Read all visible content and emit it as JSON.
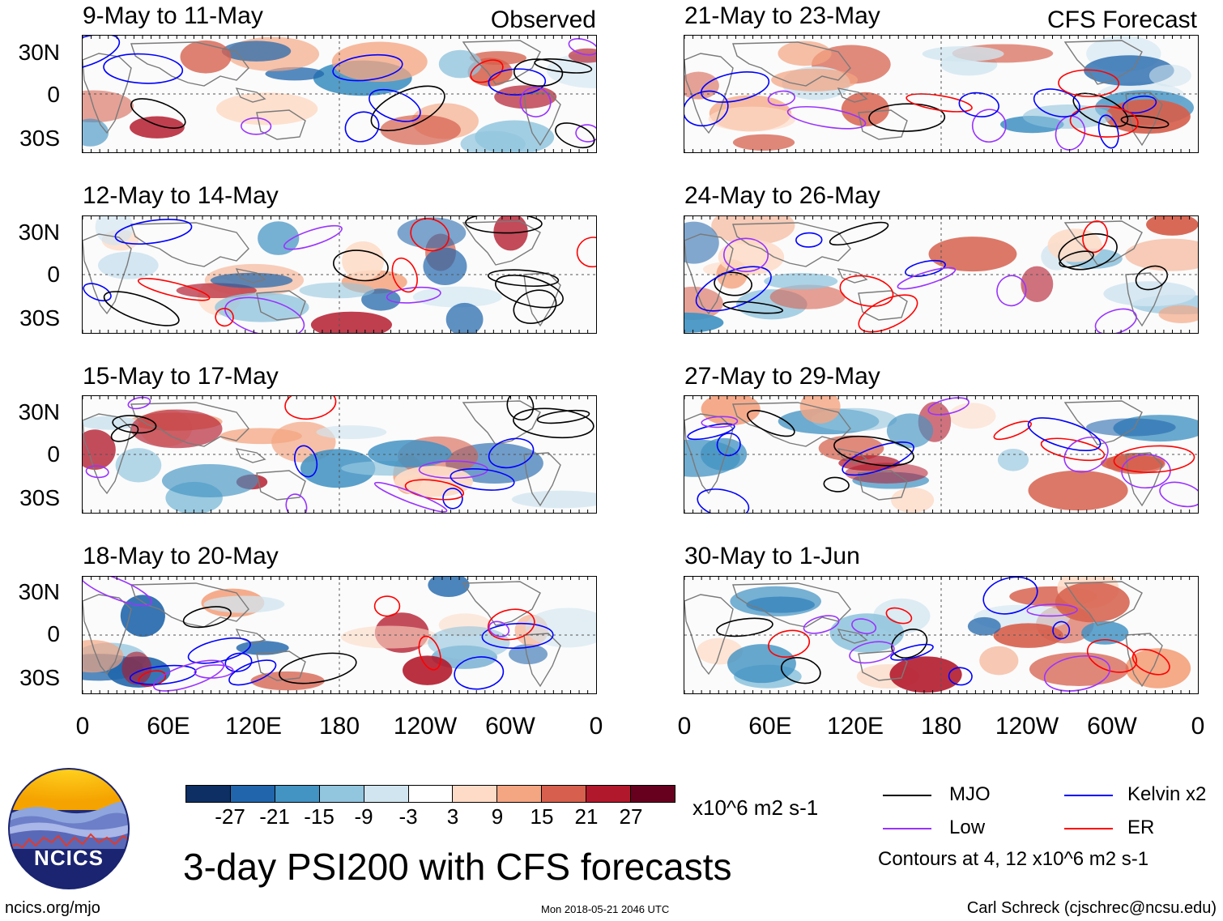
{
  "headers": {
    "left": "Observed",
    "right": "CFS Forecast"
  },
  "panels_left": [
    {
      "title": "9-May to 11-May"
    },
    {
      "title": "12-May to 14-May"
    },
    {
      "title": "15-May to 17-May"
    },
    {
      "title": "18-May to 20-May"
    }
  ],
  "panels_right": [
    {
      "title": "21-May to 23-May"
    },
    {
      "title": "24-May to 26-May"
    },
    {
      "title": "27-May to 29-May"
    },
    {
      "title": "30-May to 1-Jun"
    }
  ],
  "lat_labels": [
    "30N",
    "0",
    "30S"
  ],
  "lon_labels": [
    "0",
    "60E",
    "120E",
    "180",
    "120W",
    "60W",
    "0"
  ],
  "colorbar": {
    "colors": [
      "#0d2f63",
      "#2166ac",
      "#4393c3",
      "#92c5de",
      "#d1e5f0",
      "#ffffff",
      "#fddbc7",
      "#f4a582",
      "#d6604d",
      "#b2182b",
      "#67001f"
    ],
    "labels": [
      "-27",
      "-21",
      "-15",
      "-9",
      "-3",
      "3",
      "9",
      "15",
      "21",
      "27"
    ],
    "units": "x10^6 m2 s-1"
  },
  "legend": {
    "items": [
      {
        "name": "MJO",
        "color": "#000000"
      },
      {
        "name": "Kelvin x2",
        "color": "#0000ff"
      },
      {
        "name": "Low",
        "color": "#9933ff"
      },
      {
        "name": "ER",
        "color": "#ff0000"
      }
    ],
    "note": "Contours at 4, 12 x10^6 m2 s-1"
  },
  "logo": {
    "text": "NCICS"
  },
  "main_title": "3-day PSI200 with CFS forecasts",
  "footer": {
    "url": "ncics.org/mjo",
    "timestamp": "Mon 2018-05-21 2046 UTC",
    "credit": "Carl Schreck (cjschrec@ncsu.edu)"
  }
}
